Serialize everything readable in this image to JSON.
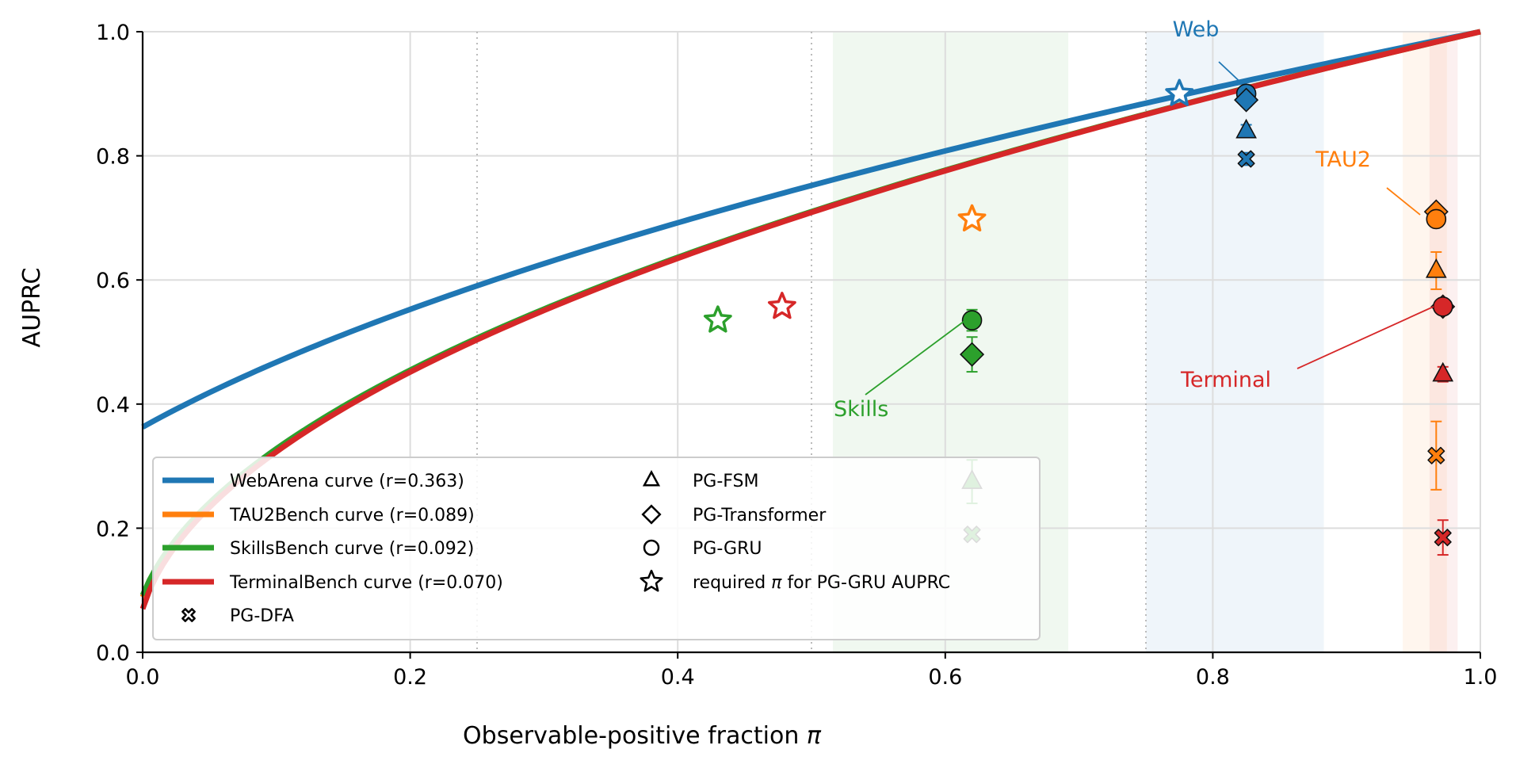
{
  "chart_data": {
    "type": "line",
    "xlabel_prefix": "Observable-positive fraction ",
    "xlabel_symbol": "π",
    "ylabel": "AUPRC",
    "xlim": [
      0,
      1
    ],
    "ylim": [
      0,
      1
    ],
    "xticks": [
      "0.0",
      "0.2",
      "0.4",
      "0.6",
      "0.8",
      "1.0"
    ],
    "yticks": [
      "0.0",
      "0.2",
      "0.4",
      "0.6",
      "0.8",
      "1.0"
    ],
    "grid": true,
    "dotted_vlines": [
      0.25,
      0.5,
      0.75
    ],
    "legend_position": "lower-left",
    "colors": {
      "web": "#1f77b4",
      "tau2": "#ff7f0e",
      "skills": "#2ca02c",
      "terminal": "#d62728"
    },
    "series": [
      {
        "key": "web",
        "name": "WebArena curve (r=0.363)",
        "r": 0.363,
        "color": "#1f77b4",
        "band": [
          0.75,
          0.883
        ],
        "star": {
          "x": 0.775,
          "y": 0.9
        },
        "annotation": {
          "text": "Web",
          "points_to": {
            "x": 0.82,
            "y": 0.92
          }
        },
        "points": [
          {
            "marker": "circle",
            "x": 0.825,
            "y": 0.9,
            "err": 0.01
          },
          {
            "marker": "diamond",
            "x": 0.825,
            "y": 0.89,
            "err": 0.01
          },
          {
            "marker": "triangle",
            "x": 0.825,
            "y": 0.84,
            "err": 0.01
          },
          {
            "marker": "x",
            "x": 0.825,
            "y": 0.795,
            "err": 0.01
          }
        ]
      },
      {
        "key": "tau2",
        "name": "TAU2Bench curve (r=0.089)",
        "r": 0.089,
        "color": "#ff7f0e",
        "band": [
          0.942,
          0.975
        ],
        "star": {
          "x": 0.62,
          "y": 0.698
        },
        "annotation": {
          "text": "TAU2",
          "points_to": {
            "x": 0.955,
            "y": 0.705
          }
        },
        "points": [
          {
            "marker": "diamond",
            "x": 0.967,
            "y": 0.71,
            "err": 0.0
          },
          {
            "marker": "circle",
            "x": 0.967,
            "y": 0.698,
            "err": 0.0
          },
          {
            "marker": "triangle",
            "x": 0.967,
            "y": 0.615,
            "err": 0.03
          },
          {
            "marker": "x",
            "x": 0.967,
            "y": 0.317,
            "err": 0.055
          }
        ]
      },
      {
        "key": "skills",
        "name": "SkillsBench curve (r=0.092)",
        "r": 0.092,
        "color": "#2ca02c",
        "band": [
          0.516,
          0.692
        ],
        "star": {
          "x": 0.43,
          "y": 0.535
        },
        "annotation": {
          "text": "Skills",
          "points_to": {
            "x": 0.615,
            "y": 0.535
          }
        },
        "points": [
          {
            "marker": "circle",
            "x": 0.62,
            "y": 0.535,
            "err": 0.017
          },
          {
            "marker": "diamond",
            "x": 0.62,
            "y": 0.48,
            "err": 0.028
          },
          {
            "marker": "triangle",
            "x": 0.62,
            "y": 0.275,
            "err": 0.035
          },
          {
            "marker": "x",
            "x": 0.62,
            "y": 0.19,
            "err": 0.0
          }
        ]
      },
      {
        "key": "terminal",
        "name": "TerminalBench curve (r=0.070)",
        "r": 0.07,
        "color": "#d62728",
        "band": [
          0.962,
          0.983
        ],
        "star": {
          "x": 0.478,
          "y": 0.557
        },
        "annotation": {
          "text": "Terminal",
          "points_to": {
            "x": 0.965,
            "y": 0.557
          }
        },
        "points": [
          {
            "marker": "diamond",
            "x": 0.972,
            "y": 0.557,
            "err": 0.0
          },
          {
            "marker": "circle",
            "x": 0.972,
            "y": 0.557,
            "err": 0.0
          },
          {
            "marker": "triangle",
            "x": 0.972,
            "y": 0.448,
            "err": 0.012
          },
          {
            "marker": "x",
            "x": 0.972,
            "y": 0.185,
            "err": 0.028
          }
        ]
      }
    ],
    "marker_legend": [
      {
        "marker": "x",
        "label": "PG-DFA"
      },
      {
        "marker": "triangle",
        "label": "PG-FSM"
      },
      {
        "marker": "diamond",
        "label": "PG-Transformer"
      },
      {
        "marker": "circle",
        "label": "PG-GRU"
      },
      {
        "marker": "star",
        "label_prefix": "required ",
        "label_symbol": "π",
        "label_suffix": " for PG-GRU AUPRC"
      }
    ]
  }
}
